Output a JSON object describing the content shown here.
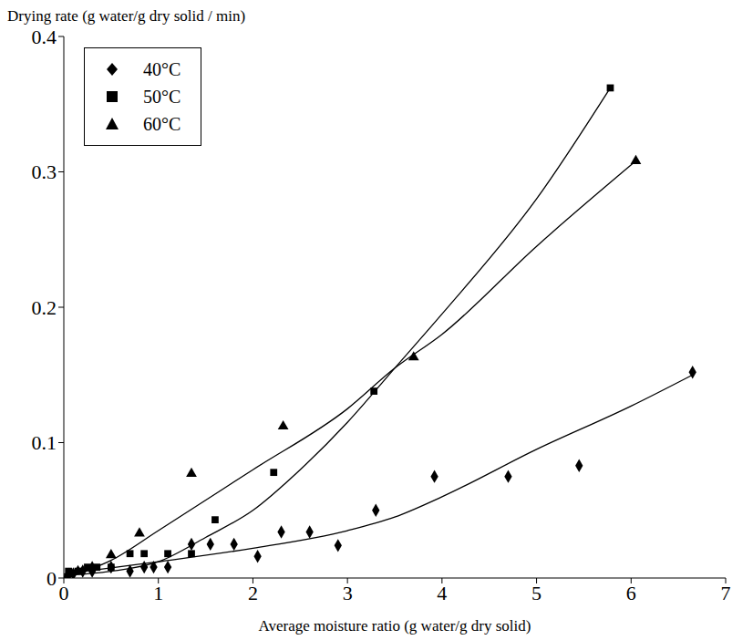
{
  "chart_data": {
    "type": "scatter",
    "y_label": "Drying rate (g water/g dry solid / min)",
    "x_label": "Average moisture ratio (g water/g dry solid)",
    "xlim": [
      0,
      7
    ],
    "xticks": [
      0,
      1,
      2,
      3,
      4,
      5,
      6,
      7
    ],
    "ylim": [
      0,
      0.4
    ],
    "yticks": [
      0,
      0.1,
      0.2,
      0.3,
      0.4
    ],
    "grid": false,
    "legend": "top-left",
    "series": [
      {
        "name": "40°C",
        "color": "#000000",
        "marker": "diamond",
        "x": [
          6.65,
          5.45,
          4.7,
          3.92,
          3.3,
          2.9,
          2.6,
          2.3,
          2.05,
          1.8,
          1.55,
          1.35,
          1.1,
          0.95,
          0.85,
          0.7,
          0.5,
          0.3,
          0.2,
          0.1,
          0.05
        ],
        "values": [
          0.152,
          0.083,
          0.075,
          0.075,
          0.05,
          0.024,
          0.034,
          0.034,
          0.016,
          0.025,
          0.025,
          0.025,
          0.008,
          0.008,
          0.008,
          0.005,
          0.008,
          0.005,
          0.005,
          0.003,
          0.002
        ],
        "fit": {
          "x": [
            0,
            1,
            2,
            3,
            3.5,
            4,
            5,
            6,
            6.65
          ],
          "values": [
            0.003,
            0.012,
            0.022,
            0.035,
            0.045,
            0.06,
            0.095,
            0.127,
            0.15
          ]
        }
      },
      {
        "name": "50°C",
        "color": "#000000",
        "marker": "square",
        "x": [
          5.78,
          3.28,
          2.22,
          1.6,
          1.35,
          1.1,
          0.85,
          0.7,
          0.5,
          0.35,
          0.25,
          0.15,
          0.05
        ],
        "values": [
          0.362,
          0.138,
          0.078,
          0.043,
          0.018,
          0.018,
          0.018,
          0.018,
          0.008,
          0.008,
          0.008,
          0.005,
          0.005
        ],
        "fit": {
          "x": [
            0,
            0.5,
            1,
            1.5,
            2,
            2.5,
            3,
            3.5,
            4,
            5,
            5.78
          ],
          "values": [
            0.002,
            0.005,
            0.012,
            0.03,
            0.05,
            0.08,
            0.115,
            0.155,
            0.195,
            0.28,
            0.362
          ]
        }
      },
      {
        "name": "60°C",
        "color": "#000000",
        "marker": "triangle",
        "x": [
          6.05,
          3.7,
          2.32,
          1.35,
          0.8,
          0.5,
          0.3,
          0.15,
          0.05
        ],
        "values": [
          0.308,
          0.163,
          0.112,
          0.077,
          0.033,
          0.017,
          0.008,
          0.005,
          0.003
        ],
        "fit": {
          "x": [
            0,
            0.5,
            1,
            2,
            3,
            3.5,
            4,
            5,
            6.05
          ],
          "values": [
            0,
            0.013,
            0.035,
            0.08,
            0.125,
            0.155,
            0.18,
            0.245,
            0.308
          ]
        }
      }
    ]
  }
}
